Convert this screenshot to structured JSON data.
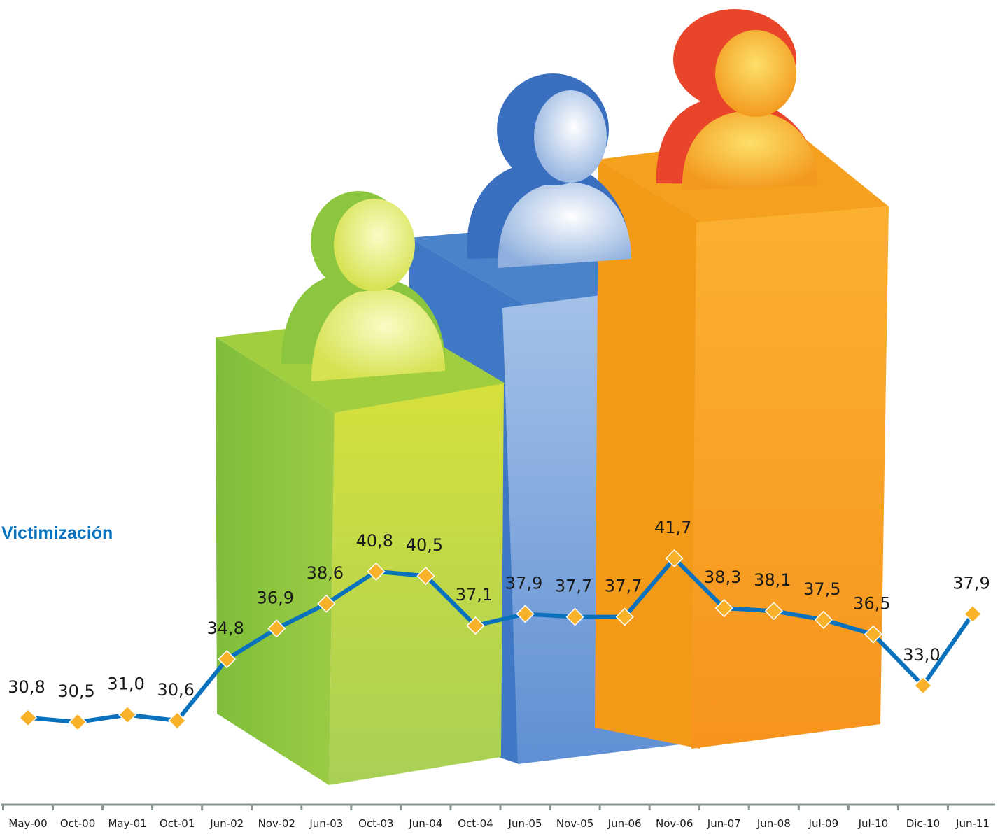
{
  "chart_data": {
    "type": "line",
    "series_label": "Victimización",
    "categories": [
      "May-00",
      "Oct-00",
      "May-01",
      "Oct-01",
      "Jun-02",
      "Nov-02",
      "Jun-03",
      "Oct-03",
      "Jun-04",
      "Oct-04",
      "Jun-05",
      "Nov-05",
      "Jun-06",
      "Nov-06",
      "Jun-07",
      "Jun-08",
      "Jul-09",
      "Jul-10",
      "Dic-10",
      "Jun-11"
    ],
    "values": [
      30.8,
      30.5,
      31.0,
      30.6,
      34.8,
      36.9,
      38.6,
      40.8,
      40.5,
      37.1,
      37.9,
      37.7,
      37.7,
      41.7,
      38.3,
      38.1,
      37.5,
      36.5,
      33.0,
      37.9
    ],
    "data_labels": [
      "30,8",
      "30,5",
      "31,0",
      "30,6",
      "34,8",
      "36,9",
      "38,6",
      "40,8",
      "40,5",
      "37,1",
      "37,9",
      "37,7",
      "37,7",
      "41,7",
      "38,3",
      "38,1",
      "37,5",
      "36,5",
      "33,0",
      "37,9"
    ],
    "title": "",
    "xlabel": "",
    "ylabel": "",
    "grid": false,
    "colors": {
      "line": "#0a72bd",
      "marker": "#f7b22a",
      "text": "#1a1a1a",
      "axis": "#8a9590"
    },
    "decoration": [
      {
        "name": "green-pillar-person",
        "colors": [
          "#8cc63f",
          "#d6e24a"
        ]
      },
      {
        "name": "blue-pillar-person",
        "colors": [
          "#3d7cc9",
          "#a9c4e8"
        ]
      },
      {
        "name": "orange-pillar-person",
        "colors": [
          "#f7941d",
          "#e8452a"
        ]
      }
    ]
  }
}
